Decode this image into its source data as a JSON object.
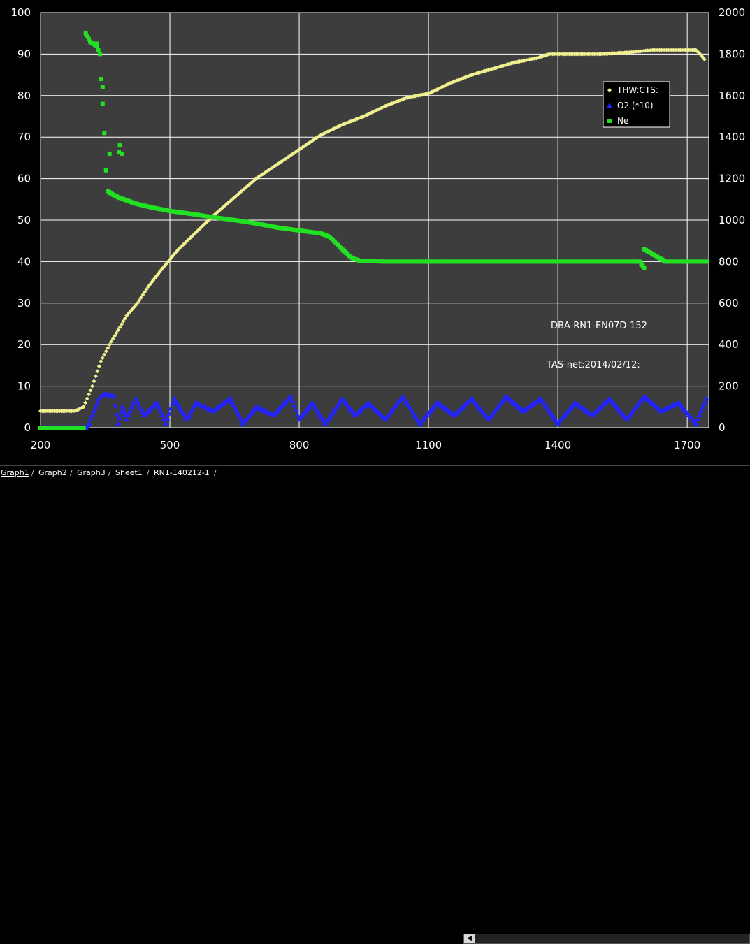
{
  "chart_data": {
    "type": "scatter",
    "x_ticks": [
      "200",
      "500",
      "800",
      "1100",
      "1400",
      "1700"
    ],
    "xlim": [
      200,
      1750
    ],
    "y_left_ticks": [
      "0",
      "10",
      "20",
      "30",
      "40",
      "50",
      "60",
      "70",
      "80",
      "90",
      "100"
    ],
    "ylim_left": [
      0,
      100
    ],
    "y_right_ticks": [
      "0",
      "200",
      "400",
      "600",
      "800",
      "1000",
      "1200",
      "1400",
      "1600",
      "1800",
      "2000"
    ],
    "ylim_right": [
      0,
      2000
    ],
    "grid": true,
    "legend_position": "top-right",
    "series": [
      {
        "name": "THW:CTS:",
        "axis": "right",
        "marker": "diamond",
        "color": "#f0f090",
        "points": [
          [
            200,
            80
          ],
          [
            280,
            80
          ],
          [
            300,
            100
          ],
          [
            320,
            200
          ],
          [
            340,
            320
          ],
          [
            360,
            400
          ],
          [
            380,
            470
          ],
          [
            400,
            540
          ],
          [
            425,
            600
          ],
          [
            450,
            680
          ],
          [
            480,
            760
          ],
          [
            520,
            860
          ],
          [
            560,
            940
          ],
          [
            600,
            1020
          ],
          [
            650,
            1110
          ],
          [
            700,
            1200
          ],
          [
            750,
            1270
          ],
          [
            800,
            1340
          ],
          [
            850,
            1410
          ],
          [
            900,
            1460
          ],
          [
            950,
            1500
          ],
          [
            1000,
            1550
          ],
          [
            1050,
            1590
          ],
          [
            1100,
            1610
          ],
          [
            1150,
            1660
          ],
          [
            1200,
            1700
          ],
          [
            1250,
            1730
          ],
          [
            1300,
            1760
          ],
          [
            1350,
            1780
          ],
          [
            1380,
            1800
          ],
          [
            1450,
            1800
          ],
          [
            1500,
            1800
          ],
          [
            1575,
            1810
          ],
          [
            1620,
            1820
          ],
          [
            1720,
            1820
          ],
          [
            1730,
            1800
          ],
          [
            1740,
            1775
          ]
        ]
      },
      {
        "name": "O2 (*10)",
        "axis": "left",
        "marker": "triangle",
        "color": "#2222ff",
        "points": [
          [
            200,
            0
          ],
          [
            305,
            0
          ],
          [
            312,
            1
          ],
          [
            320,
            3
          ],
          [
            328,
            5
          ],
          [
            336,
            7
          ],
          [
            345,
            8
          ],
          [
            355,
            8
          ],
          [
            370,
            7.5
          ],
          [
            380,
            1
          ],
          [
            390,
            5
          ],
          [
            400,
            2
          ],
          [
            420,
            7
          ],
          [
            440,
            3
          ],
          [
            470,
            6
          ],
          [
            490,
            1
          ],
          [
            510,
            7
          ],
          [
            540,
            2
          ],
          [
            560,
            6
          ],
          [
            600,
            4
          ],
          [
            640,
            7
          ],
          [
            670,
            1
          ],
          [
            700,
            5
          ],
          [
            740,
            3
          ],
          [
            780,
            7.5
          ],
          [
            800,
            2
          ],
          [
            830,
            6
          ],
          [
            860,
            1
          ],
          [
            900,
            7
          ],
          [
            930,
            3
          ],
          [
            960,
            6
          ],
          [
            1000,
            2
          ],
          [
            1040,
            7.5
          ],
          [
            1080,
            1
          ],
          [
            1120,
            6
          ],
          [
            1160,
            3
          ],
          [
            1200,
            7
          ],
          [
            1240,
            2
          ],
          [
            1280,
            7.5
          ],
          [
            1320,
            4
          ],
          [
            1360,
            7
          ],
          [
            1400,
            1
          ],
          [
            1440,
            6
          ],
          [
            1480,
            3
          ],
          [
            1520,
            7
          ],
          [
            1560,
            2
          ],
          [
            1600,
            7.5
          ],
          [
            1640,
            4
          ],
          [
            1680,
            6
          ],
          [
            1720,
            1
          ],
          [
            1745,
            7
          ]
        ]
      },
      {
        "name": "Ne",
        "axis": "left",
        "marker": "square",
        "color": "#22e022",
        "points": [
          [
            200,
            0
          ],
          [
            300,
            0
          ],
          [
            305,
            95
          ],
          [
            315,
            93
          ],
          [
            330,
            92
          ],
          [
            338,
            90
          ],
          [
            344,
            78
          ],
          [
            348,
            71
          ],
          [
            352,
            62
          ],
          [
            356,
            57
          ],
          [
            362,
            56.5
          ],
          [
            380,
            55.5
          ],
          [
            420,
            54
          ],
          [
            460,
            53
          ],
          [
            500,
            52.2
          ],
          [
            550,
            51.5
          ],
          [
            600,
            50.7
          ],
          [
            650,
            50
          ],
          [
            700,
            49.2
          ],
          [
            750,
            48.2
          ],
          [
            800,
            47.5
          ],
          [
            850,
            46.8
          ],
          [
            870,
            46
          ],
          [
            890,
            44
          ],
          [
            920,
            41
          ],
          [
            940,
            40.2
          ],
          [
            1000,
            40
          ],
          [
            1100,
            40
          ],
          [
            1200,
            40
          ],
          [
            1300,
            40
          ],
          [
            1400,
            40
          ],
          [
            1500,
            40
          ],
          [
            1590,
            40
          ],
          [
            1600,
            38.5
          ],
          [
            1600,
            43
          ],
          [
            1650,
            40
          ],
          [
            1700,
            40
          ],
          [
            1745,
            40
          ]
        ]
      },
      {
        "name": "",
        "axis": "left",
        "marker": "square",
        "color": "#22e022",
        "points": [
          [
            330,
            92.5
          ],
          [
            344,
            82
          ],
          [
            360,
            66
          ],
          [
            382,
            66.5
          ],
          [
            384,
            68
          ],
          [
            388,
            66
          ]
        ]
      }
    ],
    "annotations": [
      "DBA-RN1-EN07D-152",
      "TAS-net:2014/02/12:"
    ]
  },
  "tabs": [
    "Graph1",
    "Graph2",
    "Graph3",
    "Sheet1",
    "RN1-140212-1"
  ],
  "scroll_left_glyph": "◀"
}
